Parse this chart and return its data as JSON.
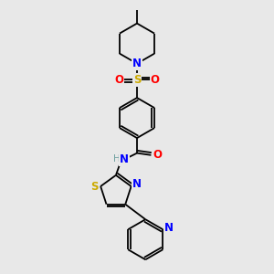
{
  "background_color": "#e8e8e8",
  "bond_color": "#000000",
  "atom_colors": {
    "N": "#0000ff",
    "O": "#ff0000",
    "S_sulfonyl": "#ccaa00",
    "S_thiazole": "#ccaa00",
    "H": "#6fa0a0",
    "C": "#000000"
  },
  "figsize": [
    3.0,
    3.0
  ],
  "dpi": 100
}
